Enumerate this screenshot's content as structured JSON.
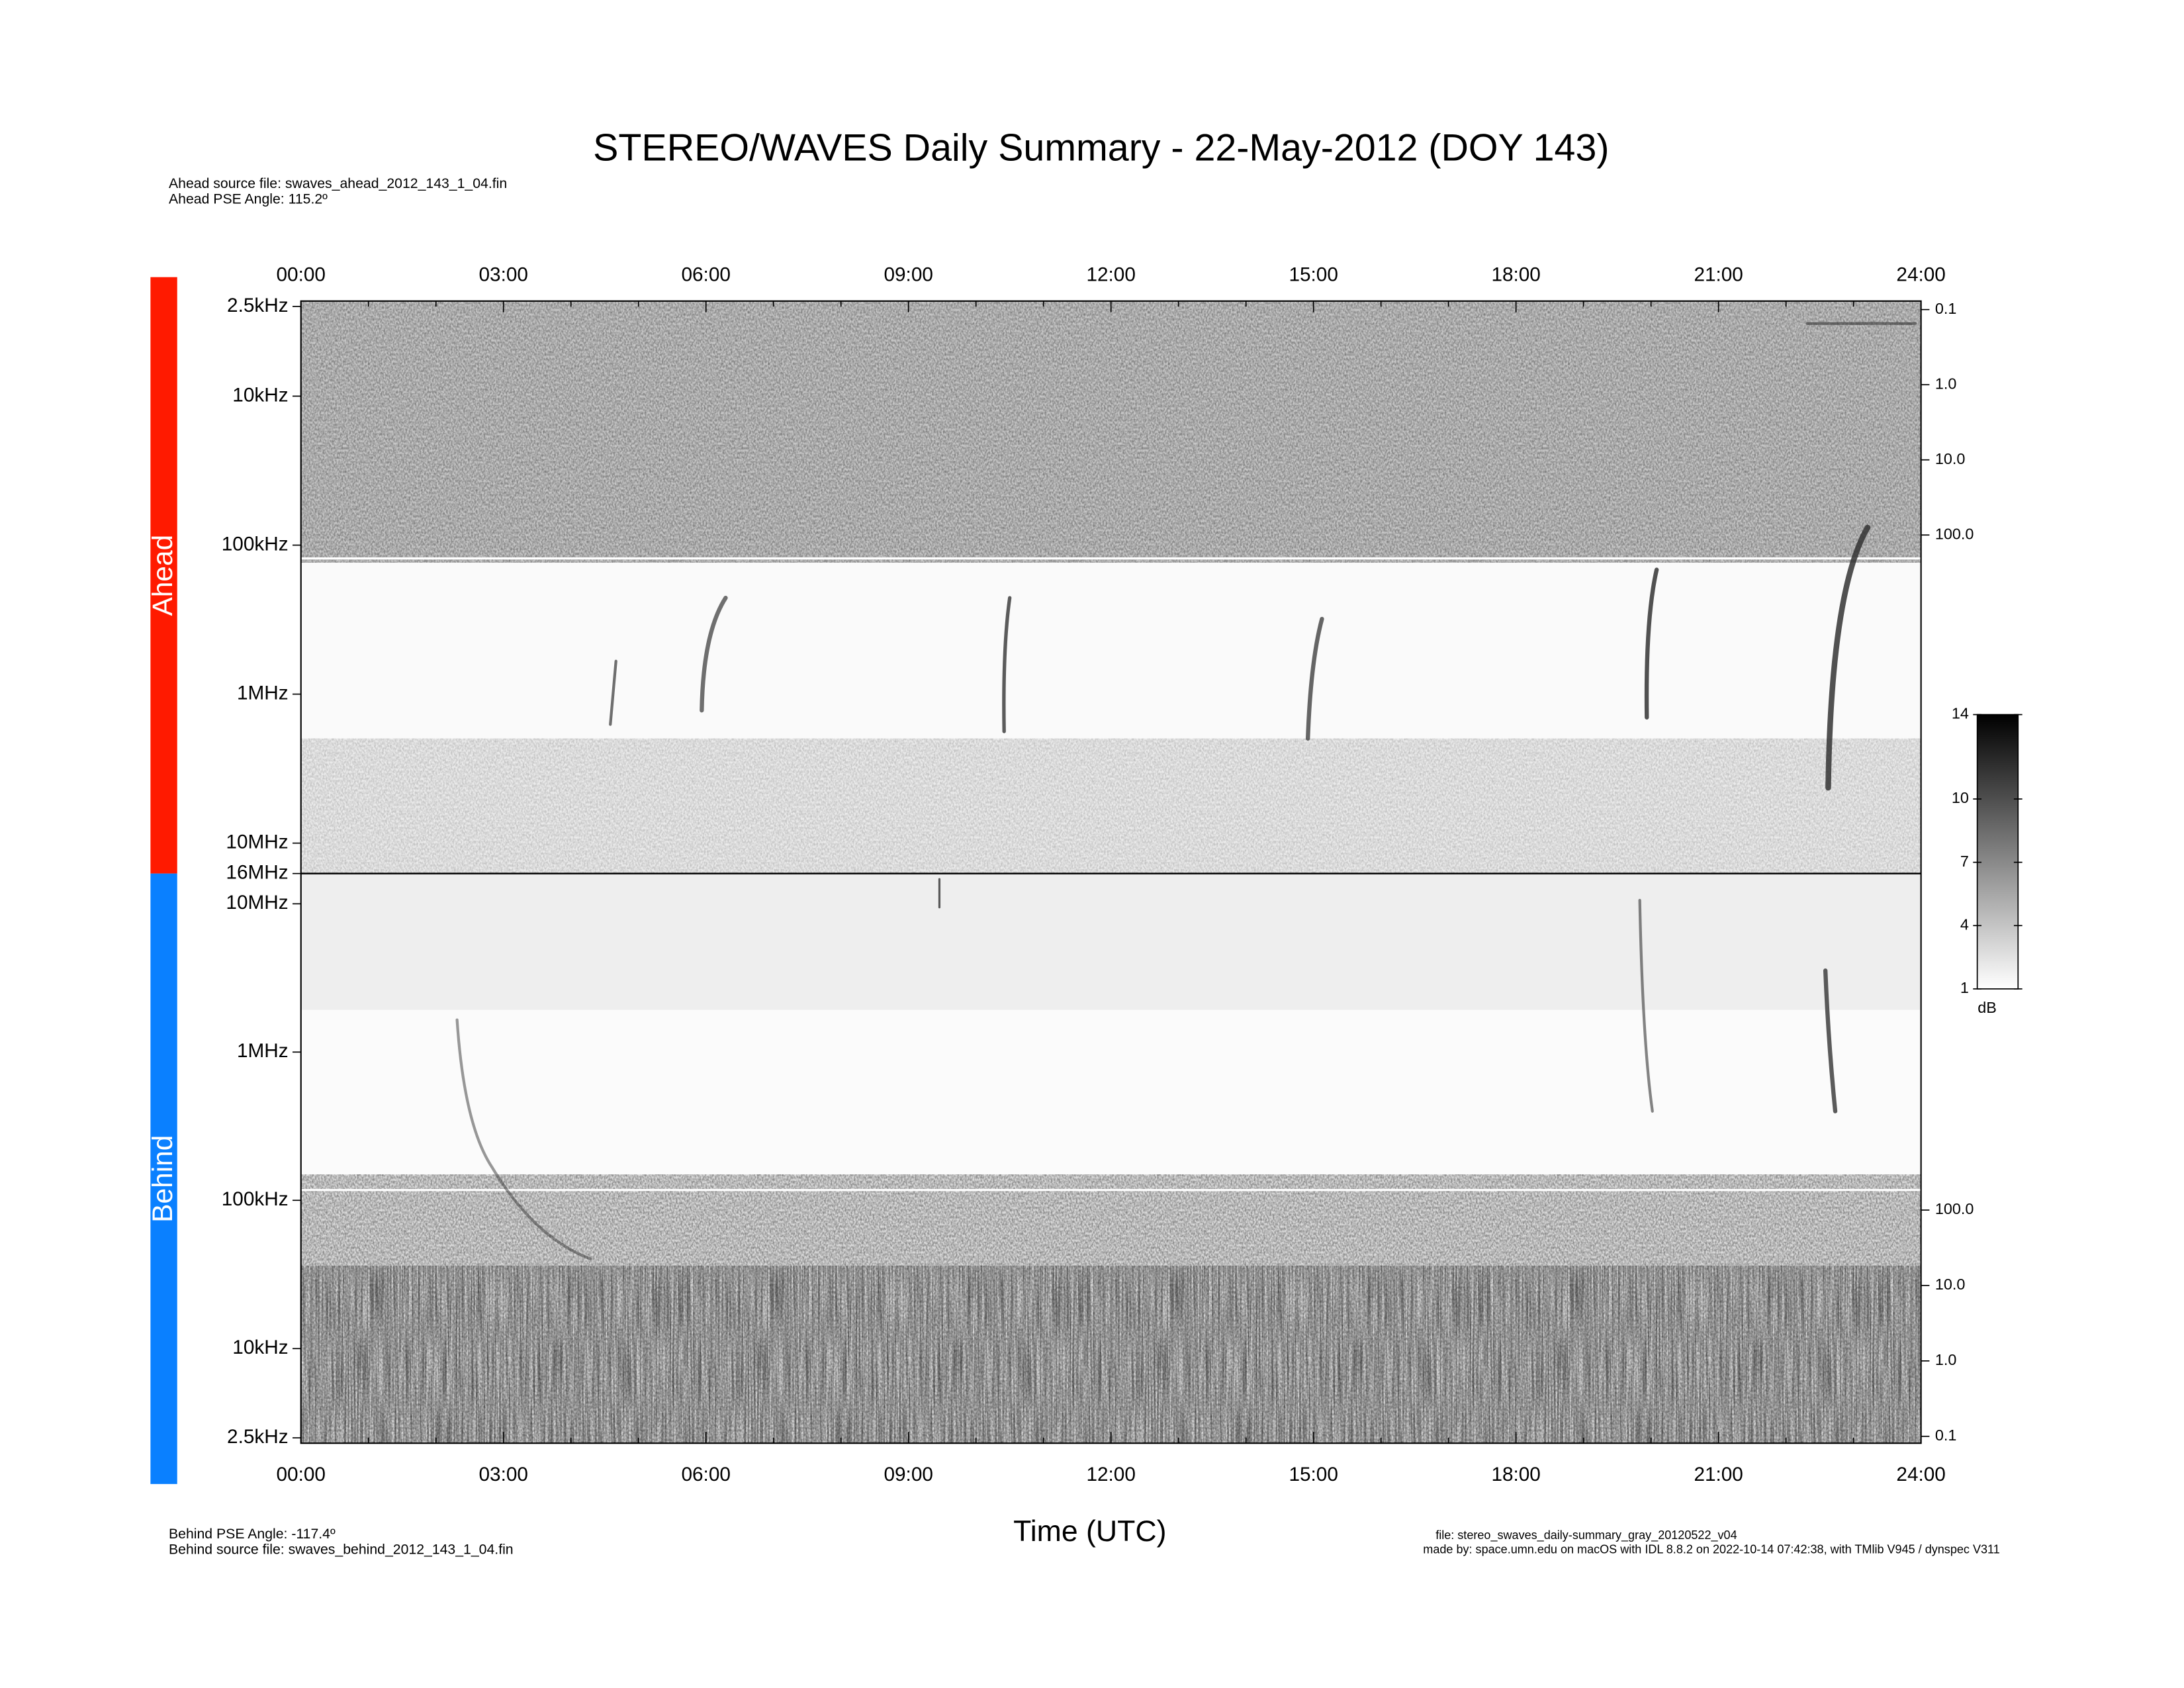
{
  "chart_data": {
    "type": "spectrogram",
    "title": "STEREO/WAVES Daily Summary - 22-May-2012 (DOY 143)",
    "ahead_source": "Ahead source file: swaves_ahead_2012_143_1_04.fin",
    "ahead_pse": "Ahead PSE Angle:  115.2º",
    "behind_pse": "Behind PSE Angle: -117.4º",
    "behind_source": "Behind source file: swaves_behind_2012_143_1_04.fin",
    "file_info": "file: stereo_swaves_daily-summary_gray_20120522_v04",
    "made_by": "made by: space.umn.edu on macOS with IDL 8.8.2 on 2022-10-14 07:42:38, with TMlib V945 / dynspec V311",
    "xlabel": "Time (UTC)",
    "xlim": [
      0,
      24
    ],
    "xticks": [
      {
        "value": 0,
        "label": "00:00"
      },
      {
        "value": 3,
        "label": "03:00"
      },
      {
        "value": 6,
        "label": "06:00"
      },
      {
        "value": 9,
        "label": "09:00"
      },
      {
        "value": 12,
        "label": "12:00"
      },
      {
        "value": 15,
        "label": "15:00"
      },
      {
        "value": 18,
        "label": "18:00"
      },
      {
        "value": 21,
        "label": "21:00"
      },
      {
        "value": 24,
        "label": "24:00"
      }
    ],
    "xminorticks": [
      1,
      2,
      4,
      5,
      7,
      8,
      10,
      11,
      13,
      14,
      16,
      17,
      19,
      20,
      22,
      23
    ],
    "log": true,
    "panels": [
      {
        "name": "Ahead",
        "color": "#ff1a00",
        "ylim": [
          2.3,
          16000
        ],
        "yticks": [
          {
            "value": 2.5,
            "label": "2.5kHz"
          },
          {
            "value": 10,
            "label": "10kHz"
          },
          {
            "value": 100,
            "label": "100kHz"
          },
          {
            "value": 1000,
            "label": "1MHz"
          },
          {
            "value": 10000,
            "label": "10MHz"
          },
          {
            "value": 16000,
            "label": "16MHz"
          }
        ],
        "y2lim": [
          0.077,
          3200000
        ],
        "y2ticks": [
          {
            "value": 0.1,
            "label": "0.1"
          },
          {
            "value": 1,
            "label": "1.0"
          },
          {
            "value": 10,
            "label": "10.0"
          },
          {
            "value": 100,
            "label": "100.0"
          }
        ]
      },
      {
        "name": "Behind",
        "color": "#0a80ff",
        "ylim": [
          16000,
          2.3
        ],
        "yticks": [
          {
            "value": 10000,
            "label": "10MHz"
          },
          {
            "value": 1000,
            "label": "1MHz"
          },
          {
            "value": 100,
            "label": "100kHz"
          },
          {
            "value": 10,
            "label": "10kHz"
          },
          {
            "value": 2.5,
            "label": "2.5kHz"
          }
        ],
        "y2lim": [
          2900000,
          0.081
        ],
        "y2ticks": [
          {
            "value": 100,
            "label": "100.0"
          },
          {
            "value": 10,
            "label": "10.0"
          },
          {
            "value": 1,
            "label": "1.0"
          },
          {
            "value": 0.1,
            "label": "0.1"
          }
        ]
      }
    ],
    "colorbar": {
      "label": "dB",
      "ylim": [
        1,
        14
      ],
      "yticks": [
        1,
        4,
        7,
        10,
        14
      ]
    }
  }
}
